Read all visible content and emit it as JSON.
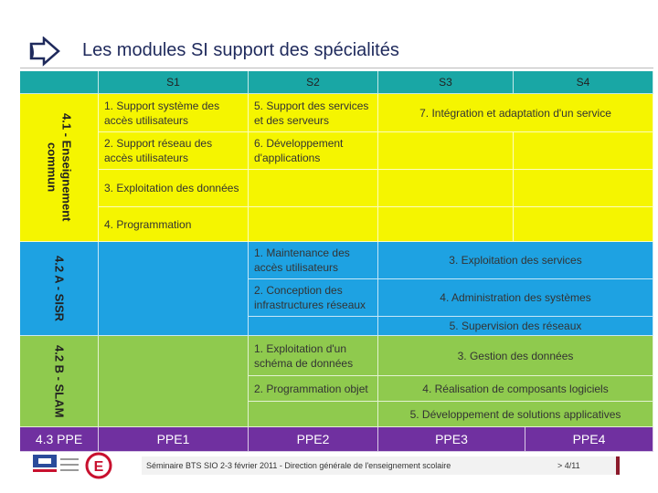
{
  "title": "Les modules SI support des spécialités",
  "table": {
    "columns": [
      "S1",
      "S2",
      "S3",
      "S4"
    ],
    "sections": [
      {
        "label": "4.1 - Enseignement commun",
        "cells": [
          "1. Support système des accès utilisateurs",
          "5. Support des services et des serveurs",
          "7. Intégration et adaptation d'un service",
          "2. Support réseau des accès utilisateurs",
          "6. Développement d'applications",
          "3. Exploitation des données",
          "4. Programmation"
        ]
      },
      {
        "label": "4.2 A - SISR",
        "cells": [
          "1. Maintenance des accès utilisateurs",
          "3. Exploitation des services",
          "2. Conception des infrastructures réseaux",
          "4. Administration des systèmes",
          "5. Supervision des réseaux"
        ]
      },
      {
        "label": "4.2 B - SLAM",
        "cells": [
          "1. Exploitation d'un schéma de données",
          "3. Gestion des données",
          "2. Programmation objet",
          "4. Réalisation de composants logiciels",
          "5. Développement de solutions applicatives"
        ]
      }
    ],
    "ppe": {
      "label": "4.3 PPE",
      "items": [
        "PPE1",
        "PPE2",
        "PPE3",
        "PPE4"
      ]
    }
  },
  "footer": {
    "text": "Séminaire BTS SIO 2-3 février 2011 - Direction générale de l'enseignement scolaire",
    "page": "> 4/11"
  }
}
